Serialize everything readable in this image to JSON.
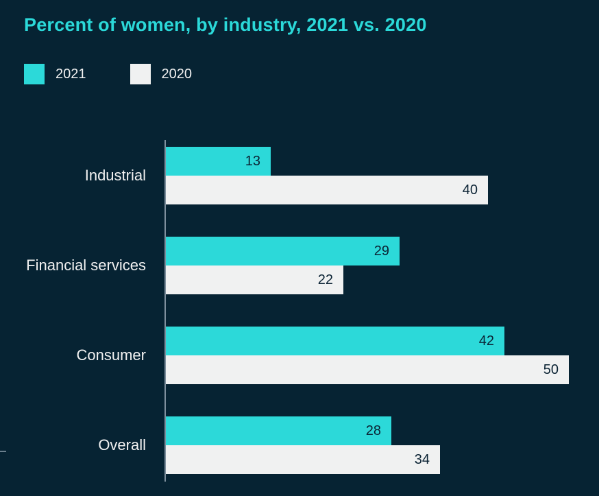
{
  "chart_data": {
    "type": "bar",
    "orientation": "horizontal",
    "title": "Percent of women, by industry, 2021 vs. 2020",
    "categories": [
      "Industrial",
      "Financial services",
      "Consumer",
      "Overall"
    ],
    "series": [
      {
        "name": "2021",
        "color": "#2cd9d9",
        "values": [
          13,
          29,
          42,
          28
        ]
      },
      {
        "name": "2020",
        "color": "#f0f1f1",
        "values": [
          40,
          22,
          50,
          34
        ]
      }
    ],
    "xlim": [
      0,
      50
    ],
    "value_labels": "inside-end",
    "legend_position": "top-left",
    "grid": false
  },
  "colors": {
    "background": "#062333",
    "title": "#2bd9d9",
    "axis_line": "#7d8f9d",
    "category_label": "#f2f2f2",
    "value_label": "#0b2334"
  }
}
